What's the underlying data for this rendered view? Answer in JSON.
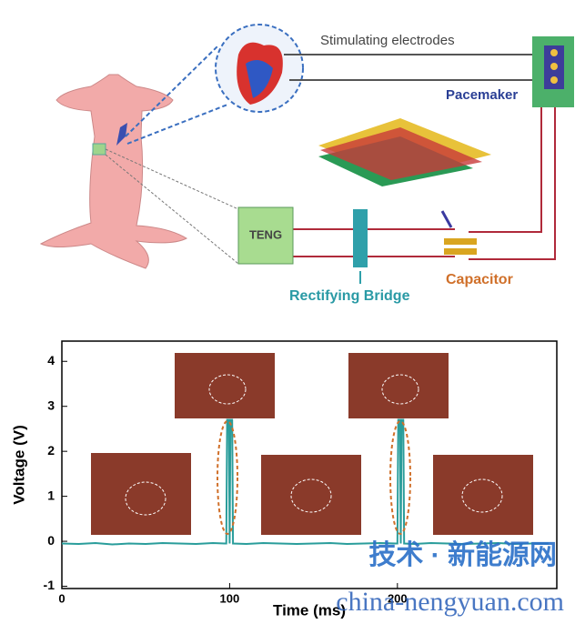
{
  "diagram": {
    "labels": {
      "electrodes": "Stimulating electrodes",
      "pacemaker": "Pacemaker",
      "teng": "TENG",
      "bridge": "Rectifying Bridge",
      "capacitor": "Capacitor"
    }
  },
  "watermark": {
    "cn": "技术 · 新能源网",
    "url": "china-nengyuan.com"
  },
  "chart_data": {
    "type": "line",
    "x_label": "Time (ms)",
    "y_label": "Voltage (V)",
    "x": [
      0,
      10,
      20,
      30,
      40,
      50,
      60,
      70,
      80,
      90,
      97,
      98,
      98.5,
      99.5,
      100,
      100.5,
      101.5,
      102,
      110,
      120,
      130,
      140,
      150,
      160,
      170,
      180,
      190,
      199,
      200,
      200.5,
      201.5,
      202,
      202.5,
      203.5,
      204,
      210,
      220,
      230,
      240,
      250,
      260,
      270,
      280,
      290
    ],
    "series": [
      {
        "name": "Voltage",
        "color": "#2a9d9b",
        "values": [
          -0.05,
          -0.06,
          -0.04,
          -0.07,
          -0.05,
          -0.06,
          -0.04,
          -0.05,
          -0.06,
          -0.04,
          -0.05,
          -0.05,
          2.7,
          2.7,
          -0.05,
          2.7,
          2.7,
          -0.05,
          -0.06,
          -0.04,
          -0.05,
          -0.06,
          -0.05,
          -0.04,
          -0.06,
          -0.05,
          -0.04,
          -0.05,
          -0.05,
          2.7,
          2.7,
          -0.05,
          2.7,
          2.7,
          -0.05,
          -0.06,
          -0.04,
          -0.05,
          -0.06,
          -0.05,
          -0.04,
          -0.06,
          -0.05,
          -0.05
        ]
      }
    ],
    "xlim": [
      0,
      295
    ],
    "ylim": [
      -1.05,
      4.45
    ],
    "xticks": [
      0,
      100,
      200
    ],
    "yticks": [
      -1,
      0,
      1,
      2,
      3,
      4
    ]
  }
}
